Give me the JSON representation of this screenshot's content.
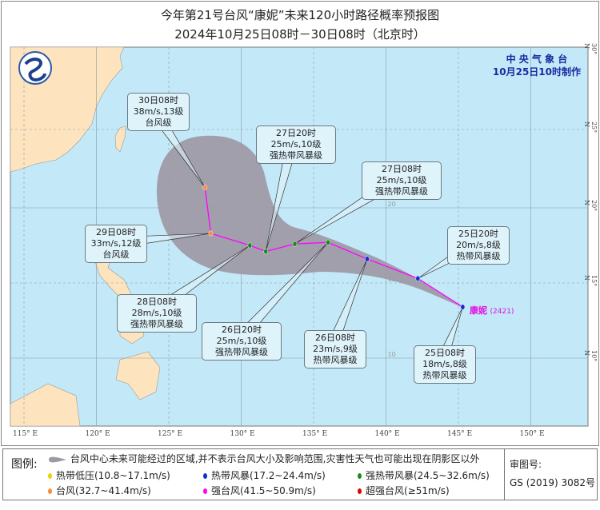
{
  "header": {
    "title": "今年第21号台风“康妮”未来120小时路径概率预报图",
    "subtitle": "2024年10月25日08时－30日08时（北京时）"
  },
  "agency": {
    "name": "中 央 气 象 台",
    "issued": "10月25日10时制作"
  },
  "typhoon": {
    "name": "康妮",
    "code": "(2421)"
  },
  "colors": {
    "sea": "#c3e9f8",
    "land": "#fde4bf",
    "cone": "#9e97a4",
    "track": "#ff00ff",
    "tropical_depression": "#f0d000",
    "tropical_storm": "#1030d0",
    "severe_tropical_storm": "#1a8a1a",
    "typhoon": "#ff8c30",
    "severe_typhoon": "#ff00ff",
    "super_typhoon": "#e00000",
    "agency_text": "#1a2aa0"
  },
  "axes": {
    "lon_labels": [
      "115° E",
      "120° E",
      "125° E",
      "130° E",
      "135° E",
      "140° E",
      "145° E",
      "150° E"
    ],
    "lat_labels": [
      "10° N",
      "15° N",
      "20° N",
      "25° N",
      "30° N"
    ],
    "inner_lat_labels": [
      "10",
      "15",
      "20"
    ]
  },
  "track": [
    {
      "time": "25日08时",
      "lon": 145.3,
      "lat": 13.4,
      "wind": "18m/s,8级",
      "level": "热带风暴级",
      "cat": "tropical_storm"
    },
    {
      "time": "25日20时",
      "lon": 142.2,
      "lat": 15.3,
      "wind": "20m/s,8级",
      "level": "热带风暴级",
      "cat": "tropical_storm"
    },
    {
      "time": "26日08时",
      "lon": 138.7,
      "lat": 16.6,
      "wind": "23m/s,9级",
      "level": "热带风暴级",
      "cat": "tropical_storm"
    },
    {
      "time": "26日20时",
      "lon": 136.0,
      "lat": 17.7,
      "wind": "25m/s,10级",
      "level": "强热带风暴级",
      "cat": "severe_tropical_storm"
    },
    {
      "time": "27日08时",
      "lon": 133.7,
      "lat": 17.6,
      "wind": "25m/s,10级",
      "level": "强热带风暴级",
      "cat": "severe_tropical_storm"
    },
    {
      "time": "27日20时",
      "lon": 131.7,
      "lat": 17.1,
      "wind": "25m/s,10级",
      "level": "强热带风暴级",
      "cat": "severe_tropical_storm"
    },
    {
      "time": "28日08时",
      "lon": 130.6,
      "lat": 17.5,
      "wind": "28m/s,10级",
      "level": "强热带风暴级",
      "cat": "severe_tropical_storm"
    },
    {
      "time": "29日08时",
      "lon": 127.9,
      "lat": 18.3,
      "wind": "33m/s,12级",
      "level": "台风级",
      "cat": "typhoon"
    },
    {
      "time": "30日08时",
      "lon": 127.5,
      "lat": 21.3,
      "wind": "38m/s,13级",
      "level": "台风级",
      "cat": "typhoon"
    }
  ],
  "legend": {
    "title": "图例:",
    "cone_text": "台风中心未来可能经过的区域,并不表示台风大小及影响范围,灾害性天气也可能出现在阴影区以外",
    "items": [
      {
        "label": "热带低压(10.8~17.1m/s)",
        "cat": "tropical_depression"
      },
      {
        "label": "热带风暴(17.2~24.4m/s)",
        "cat": "tropical_storm"
      },
      {
        "label": "强热带风暴(24.5~32.6m/s)",
        "cat": "severe_tropical_storm"
      },
      {
        "label": "台风(32.7~41.4m/s)",
        "cat": "typhoon"
      },
      {
        "label": "强台风(41.5~50.9m/s)",
        "cat": "severe_typhoon"
      },
      {
        "label": "超强台风(≥51m/s)",
        "cat": "super_typhoon"
      }
    ],
    "approval_label": "审图号:",
    "approval_number": "GS (2019) 3082号"
  }
}
